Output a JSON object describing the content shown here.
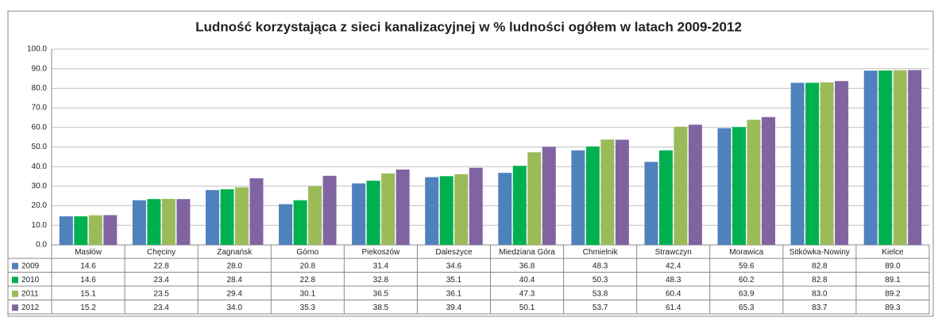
{
  "chart_data": {
    "type": "bar",
    "title": "Ludność korzystająca z sieci kanalizacyjnej w % ludności ogółem w latach 2009-2012",
    "categories": [
      "Masłów",
      "Chęciny",
      "Zagnańsk",
      "Górno",
      "Piekoszów",
      "Daleszyce",
      "Miedziana Góra",
      "Chmielnik",
      "Strawczyn",
      "Morawica",
      "Sitkówka-Nowiny",
      "Kielce"
    ],
    "series": [
      {
        "name": "2009",
        "color": "#4f81bd",
        "values": [
          14.6,
          22.8,
          28.0,
          20.8,
          31.4,
          34.6,
          36.8,
          48.3,
          42.4,
          59.6,
          82.8,
          89.0
        ],
        "value_labels": [
          "14.6",
          "22.8",
          "28.0",
          "20.8",
          "31.4",
          "34.6",
          "36.8",
          "48.3",
          "42.4",
          "59.6",
          "82.8",
          "89.0"
        ]
      },
      {
        "name": "2010",
        "color": "#00b050",
        "values": [
          14.6,
          23.4,
          28.4,
          22.8,
          32.8,
          35.1,
          40.4,
          50.3,
          48.3,
          60.2,
          82.8,
          89.1
        ],
        "value_labels": [
          "14.6",
          "23.4",
          "28.4",
          "22.8",
          "32.8",
          "35.1",
          "40.4",
          "50.3",
          "48.3",
          "60.2",
          "82.8",
          "89.1"
        ]
      },
      {
        "name": "2011",
        "color": "#9bbb59",
        "values": [
          15.1,
          23.5,
          29.4,
          30.1,
          36.5,
          36.1,
          47.3,
          53.8,
          60.4,
          63.9,
          83.0,
          89.2
        ],
        "value_labels": [
          "15.1",
          "23.5",
          "29.4",
          "30.1",
          "36.5",
          "36.1",
          "47.3",
          "53.8",
          "60.4",
          "63.9",
          "83.0",
          "89.2"
        ]
      },
      {
        "name": "2012",
        "color": "#8064a2",
        "values": [
          15.2,
          23.4,
          34.0,
          35.3,
          38.5,
          39.4,
          50.1,
          53.7,
          61.4,
          65.3,
          83.7,
          89.3
        ],
        "value_labels": [
          "15.2",
          "23.4",
          "34.0",
          "35.3",
          "38.5",
          "39.4",
          "50.1",
          "53.7",
          "61.4",
          "65.3",
          "83.7",
          "89.3"
        ]
      }
    ],
    "ylim": [
      0,
      100
    ],
    "yticks": [
      {
        "value": 0,
        "label": "0.0"
      },
      {
        "value": 10,
        "label": "10.0"
      },
      {
        "value": 20,
        "label": "20.0"
      },
      {
        "value": 30,
        "label": "30.0"
      },
      {
        "value": 40,
        "label": "40.0"
      },
      {
        "value": 50,
        "label": "50.0"
      },
      {
        "value": 60,
        "label": "60.0"
      },
      {
        "value": 70,
        "label": "70.0"
      },
      {
        "value": 80,
        "label": "80.0"
      },
      {
        "value": 90,
        "label": "90.0"
      },
      {
        "value": 100,
        "label": "100.0"
      }
    ],
    "grid": true
  }
}
